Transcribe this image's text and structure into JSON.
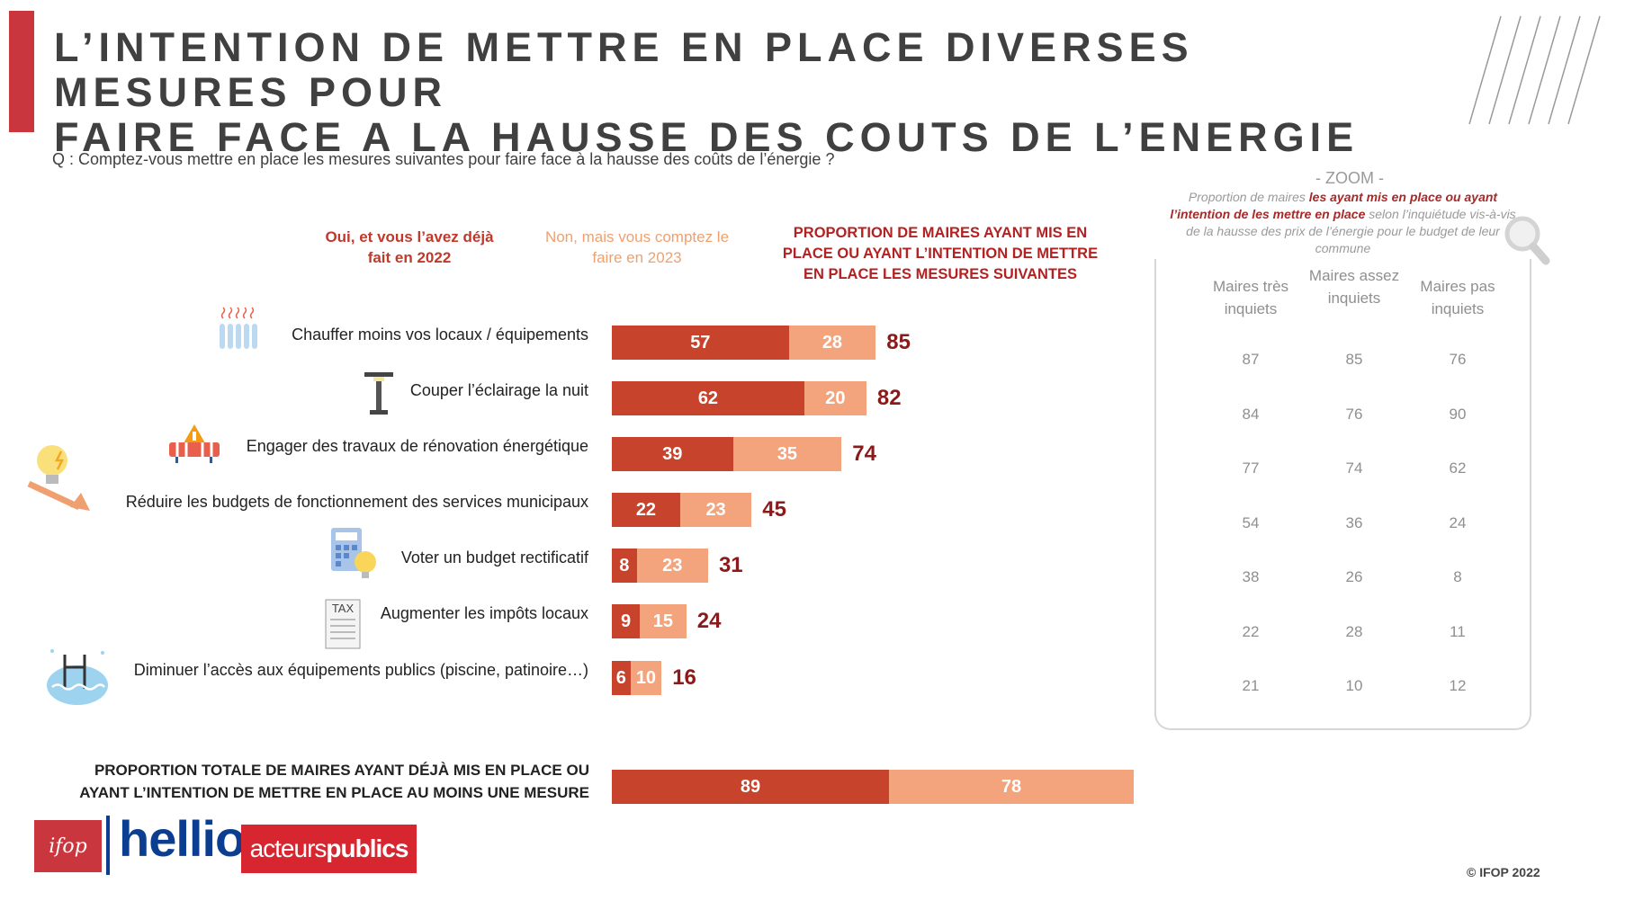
{
  "title_line1": "L’INTENTION DE METTRE EN PLACE DIVERSES MESURES POUR",
  "title_line2": "FAIRE FACE A LA HAUSSE DES COUTS DE L’ENERGIE",
  "question": "Q : Comptez-vous mettre en place les mesures suivantes pour faire face à la hausse des coûts de l’énergie ?",
  "column_headers": {
    "yes": "Oui, et vous l’avez déjà fait en 2022",
    "no": "Non, mais vous comptez le faire en 2023",
    "proportion": "PROPORTION DE MAIRES AYANT MIS EN PLACE OU AYANT L’INTENTION DE METTRE EN PLACE LES MESURES SUIVANTES"
  },
  "colors": {
    "accent": "#c9363d",
    "yes": "#c8432b",
    "no": "#f3a47c",
    "total": "#8b1a1a"
  },
  "chart_data": {
    "type": "bar",
    "orientation": "horizontal",
    "stacked": true,
    "categories": [
      "Chauffer moins vos locaux / équipements",
      "Couper l’éclairage la nuit",
      "Engager des travaux de rénovation énergétique",
      "Réduire les budgets de fonctionnement des services municipaux",
      "Voter un budget rectificatif",
      "Augmenter les impôts locaux",
      "Diminuer l’accès aux équipements publics (piscine, patinoire…)"
    ],
    "series": [
      {
        "name": "Oui, et vous l’avez déjà fait en 2022",
        "values": [
          57,
          62,
          39,
          22,
          8,
          9,
          6
        ]
      },
      {
        "name": "Non, mais vous comptez le faire en 2023",
        "values": [
          28,
          20,
          35,
          23,
          23,
          15,
          10
        ]
      }
    ],
    "totals": [
      85,
      82,
      74,
      45,
      31,
      24,
      16
    ],
    "summary": {
      "label": "PROPORTION TOTALE DE MAIRES AYANT DÉJÀ MIS EN PLACE OU AYANT L’INTENTION DE METTRE EN PLACE AU MOINS UNE MESURE",
      "values": [
        89,
        78
      ]
    },
    "zoom": {
      "title": "- ZOOM -",
      "subtitle_pre": "Proportion de maires ",
      "subtitle_highlight": "les ayant mis en place ou ayant l’intention de les mettre en place",
      "subtitle_post": " selon l’inquiétude vis-à-vis de la hausse des prix de l’énergie pour le budget de leur commune",
      "headers": [
        "Maires très inquiets",
        "Maires assez inquiets",
        "Maires pas inquiets"
      ],
      "rows": [
        [
          87,
          85,
          76
        ],
        [
          84,
          76,
          90
        ],
        [
          77,
          74,
          62
        ],
        [
          54,
          36,
          24
        ],
        [
          38,
          26,
          8
        ],
        [
          22,
          28,
          11
        ],
        [
          21,
          10,
          12
        ]
      ]
    }
  },
  "logos": {
    "ifop": "ifop",
    "hellio": "hellio",
    "acteurs": "acteurs",
    "publics": "publics"
  },
  "icons": [
    "radiator-icon",
    "street-lamp-icon",
    "renovation-icon",
    "bulb-down-icon",
    "calculator-icon",
    "tax-form-icon",
    "pool-icon",
    "magnifier-icon"
  ],
  "copyright": "© IFOP 2022"
}
